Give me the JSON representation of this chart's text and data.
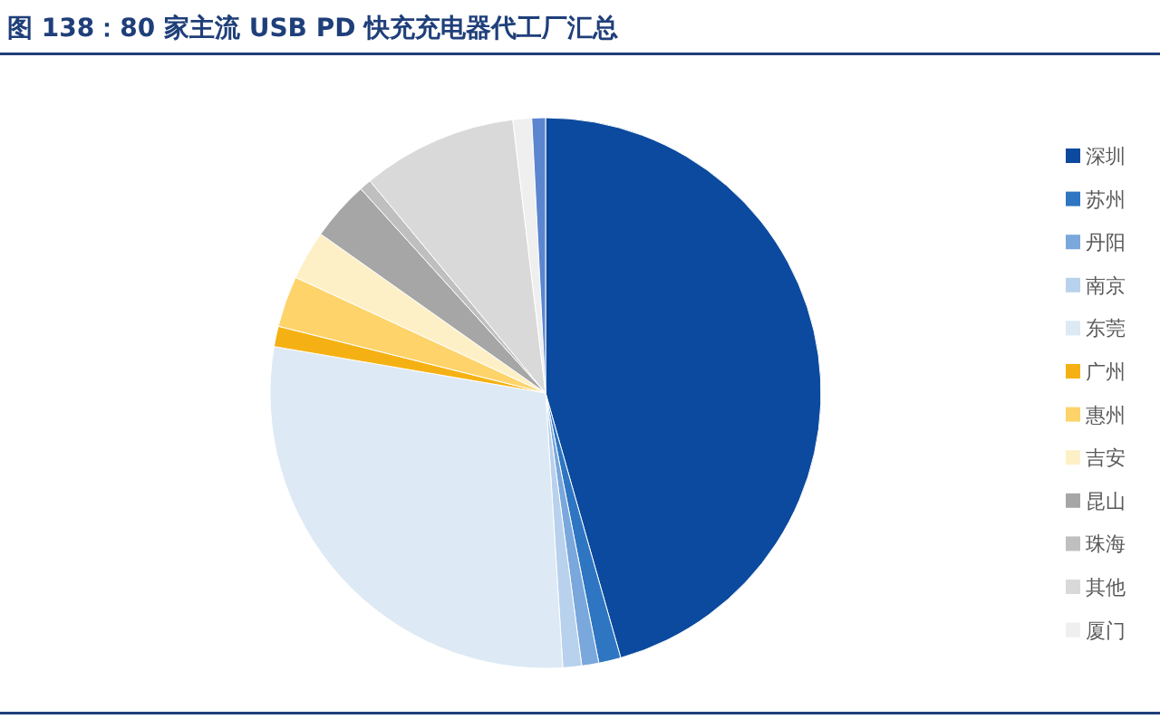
{
  "chart_data": {
    "type": "pie",
    "title": "图 138：80 家主流 USB PD 快充充电器代工厂汇总",
    "categories": [
      "深圳",
      "苏州",
      "丹阳",
      "南京",
      "东莞",
      "广州",
      "惠州",
      "吉安",
      "昆山",
      "珠海",
      "其他",
      "厦门",
      null
    ],
    "values": [
      45.6,
      1.3,
      1.0,
      1.1,
      28.7,
      1.2,
      3.0,
      2.9,
      3.5,
      0.7,
      9.1,
      1.1,
      0.8
    ],
    "colors": [
      "#0b4a9e",
      "#2e75c2",
      "#7aa7dc",
      "#b8d1ec",
      "#dde9f5",
      "#f5b114",
      "#fdd36a",
      "#fef0c6",
      "#a6a6a6",
      "#bfbfbf",
      "#d9d9d9",
      "#efefef",
      "#5b86cf"
    ],
    "legend": "right"
  }
}
